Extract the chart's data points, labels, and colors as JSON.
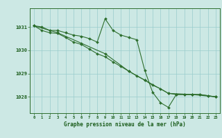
{
  "bg_color": "#cce8e4",
  "grid_color": "#99cccc",
  "line_color": "#2d6e2d",
  "marker_color": "#2d6e2d",
  "xlabel": "Graphe pression niveau de la mer (hPa)",
  "xlabel_color": "#1a5c1a",
  "tick_color": "#1a5c1a",
  "axis_color": "#2d6e2d",
  "ylim": [
    1027.3,
    1031.8
  ],
  "xlim": [
    -0.5,
    23.5
  ],
  "yticks": [
    1028,
    1029,
    1030,
    1031
  ],
  "xticks": [
    0,
    1,
    2,
    3,
    4,
    5,
    6,
    7,
    8,
    9,
    10,
    11,
    12,
    13,
    14,
    15,
    16,
    17,
    18,
    19,
    20,
    21,
    22,
    23
  ],
  "series": [
    {
      "x": [
        0,
        1,
        2,
        3,
        4,
        5,
        6,
        7,
        8,
        9,
        10,
        11,
        12,
        13,
        14,
        15,
        16,
        17,
        18,
        19,
        20,
        21,
        22,
        23
      ],
      "y": [
        1031.05,
        1031.0,
        1030.85,
        1030.85,
        1030.75,
        1030.65,
        1030.6,
        1030.5,
        1030.35,
        1031.35,
        1030.85,
        1030.65,
        1030.55,
        1030.45,
        1029.15,
        1028.2,
        1027.75,
        1027.55,
        1028.1,
        1028.1,
        1028.1,
        1028.1,
        1028.05,
        1028.0
      ]
    },
    {
      "x": [
        0,
        1,
        2,
        3,
        4,
        5,
        6,
        7,
        8,
        9,
        10,
        11,
        12,
        13,
        14,
        15,
        16,
        17,
        18,
        19,
        20,
        21,
        22,
        23
      ],
      "y": [
        1031.05,
        1030.85,
        1030.75,
        1030.72,
        1030.55,
        1030.35,
        1030.25,
        1030.05,
        1029.85,
        1029.72,
        1029.5,
        1029.3,
        1029.1,
        1028.9,
        1028.72,
        1028.5,
        1028.35,
        1028.15,
        1028.1,
        1028.1,
        1028.1,
        1028.1,
        1028.05,
        1028.0
      ]
    },
    {
      "x": [
        0,
        3,
        6,
        9,
        12,
        14,
        17,
        20,
        23
      ],
      "y": [
        1031.05,
        1030.75,
        1030.3,
        1029.85,
        1029.1,
        1028.72,
        1028.15,
        1028.1,
        1028.0
      ]
    }
  ]
}
